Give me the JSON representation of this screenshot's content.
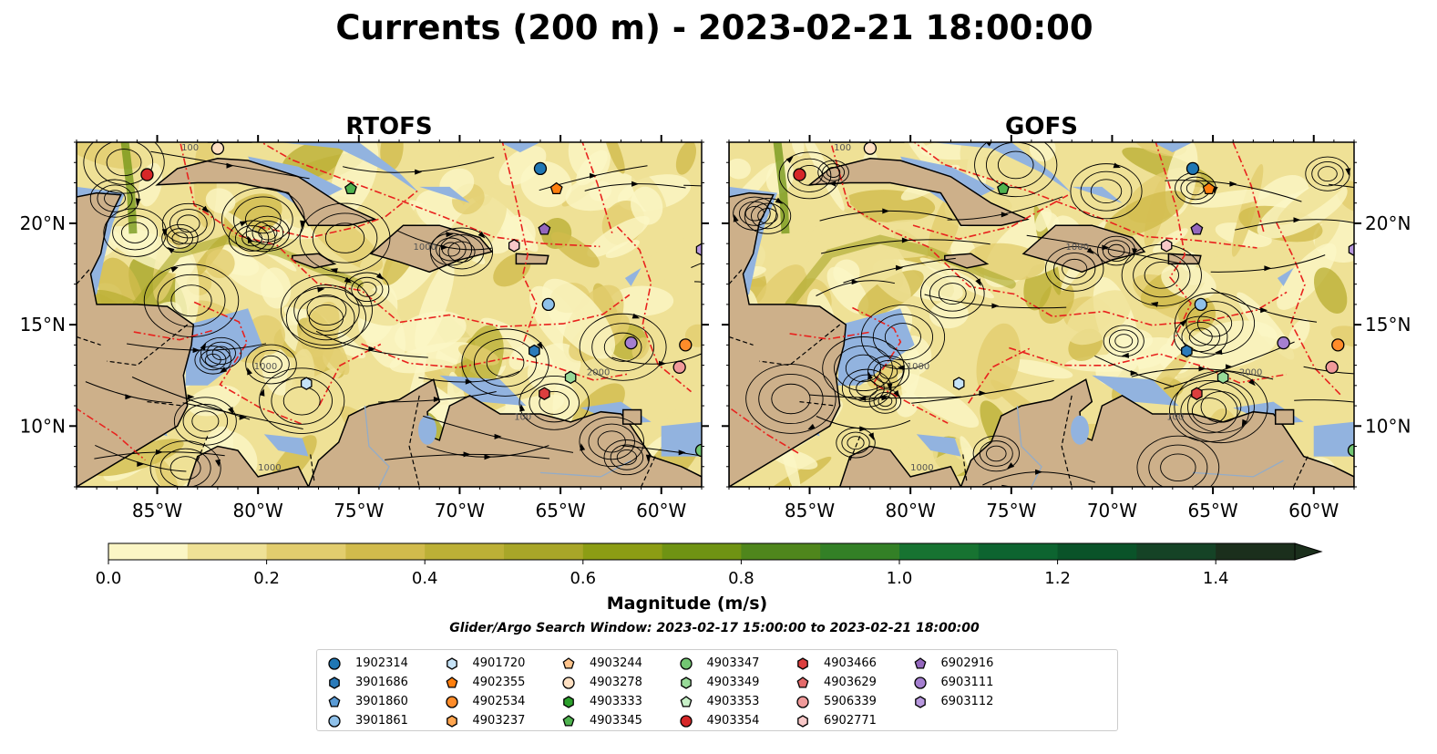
{
  "title": "Currents (200 m) - 2023-02-21 18:00:00",
  "panels": [
    {
      "title": "RTOFS"
    },
    {
      "title": "GOFS"
    }
  ],
  "axes": {
    "lon_ticks": [
      "85°W",
      "80°W",
      "75°W",
      "70°W",
      "65°W",
      "60°W"
    ],
    "lat_ticks": [
      "20°N",
      "15°N",
      "10°N"
    ],
    "lon_range": [
      -89,
      -58
    ],
    "lat_range": [
      7,
      24
    ]
  },
  "colorbar": {
    "label": "Magnitude (m/s)",
    "ticks": [
      "0.0",
      "0.2",
      "0.4",
      "0.6",
      "0.8",
      "1.0",
      "1.2",
      "1.4"
    ],
    "range": [
      0,
      1.5
    ],
    "colors": [
      "#fbf6c5",
      "#efe196",
      "#e2cd6e",
      "#d1bb4c",
      "#bcb036",
      "#a8a628",
      "#8c9d14",
      "#6f9313",
      "#4f861c",
      "#338026",
      "#177331",
      "#0d6430",
      "#0a5329",
      "#154326",
      "#1b2f1c"
    ],
    "extend": "max"
  },
  "search_window": "Glider/Argo Search Window: 2023-02-17 15:00:00 to 2023-02-21 18:00:00",
  "legend": [
    {
      "id": "1902314",
      "color": "#1f77b4",
      "marker": "circle"
    },
    {
      "id": "3901686",
      "color": "#2b7bba",
      "marker": "hexagon"
    },
    {
      "id": "3901860",
      "color": "#5a9bd5",
      "marker": "pentagon"
    },
    {
      "id": "3901861",
      "color": "#8fc1ea",
      "marker": "circle"
    },
    {
      "id": "4901720",
      "color": "#c6e3f7",
      "marker": "hexagon"
    },
    {
      "id": "4902355",
      "color": "#ff7f0e",
      "marker": "pentagon"
    },
    {
      "id": "4902534",
      "color": "#ff8c2a",
      "marker": "circle"
    },
    {
      "id": "4903237",
      "color": "#ffa54f",
      "marker": "hexagon"
    },
    {
      "id": "4903244",
      "color": "#ffc48c",
      "marker": "pentagon"
    },
    {
      "id": "4903278",
      "color": "#ffe0c2",
      "marker": "circle"
    },
    {
      "id": "4903333",
      "color": "#2ca02c",
      "marker": "hexagon"
    },
    {
      "id": "4903345",
      "color": "#4fb34f",
      "marker": "pentagon"
    },
    {
      "id": "4903347",
      "color": "#72c672",
      "marker": "circle"
    },
    {
      "id": "4903349",
      "color": "#98da98",
      "marker": "hexagon"
    },
    {
      "id": "4903353",
      "color": "#c8f0c8",
      "marker": "pentagon"
    },
    {
      "id": "4903354",
      "color": "#d62728",
      "marker": "circle"
    },
    {
      "id": "4903466",
      "color": "#dc3e3e",
      "marker": "hexagon"
    },
    {
      "id": "4903629",
      "color": "#e56b6b",
      "marker": "pentagon"
    },
    {
      "id": "5906339",
      "color": "#f09a9a",
      "marker": "circle"
    },
    {
      "id": "6902771",
      "color": "#f8c8c8",
      "marker": "hexagon"
    },
    {
      "id": "6902916",
      "color": "#9467bd",
      "marker": "pentagon"
    },
    {
      "id": "6903111",
      "color": "#a57fd0",
      "marker": "circle"
    },
    {
      "id": "6903112",
      "color": "#b898de",
      "marker": "hexagon"
    }
  ],
  "floats": [
    {
      "id": "4903354",
      "lon": -85.5,
      "lat": 22.4,
      "color": "#d62728",
      "marker": "circle"
    },
    {
      "id": "4903278",
      "lon": -82.0,
      "lat": 23.7,
      "color": "#ffe0c2",
      "marker": "circle"
    },
    {
      "id": "4903345",
      "lon": -75.4,
      "lat": 21.7,
      "color": "#4fb34f",
      "marker": "pentagon"
    },
    {
      "id": "1902314",
      "lon": -66.0,
      "lat": 22.7,
      "color": "#1f77b4",
      "marker": "circle"
    },
    {
      "id": "4902355",
      "lon": -65.2,
      "lat": 21.7,
      "color": "#ff7f0e",
      "marker": "pentagon"
    },
    {
      "id": "6902916",
      "lon": -65.8,
      "lat": 19.7,
      "color": "#9467bd",
      "marker": "pentagon"
    },
    {
      "id": "6902771",
      "lon": -67.3,
      "lat": 18.9,
      "color": "#f8c8c8",
      "marker": "hexagon"
    },
    {
      "id": "6903112",
      "lon": -58.0,
      "lat": 18.7,
      "color": "#b898de",
      "marker": "hexagon"
    },
    {
      "id": "3901861",
      "lon": -65.6,
      "lat": 16.0,
      "color": "#8fc1ea",
      "marker": "circle"
    },
    {
      "id": "6903111",
      "lon": -61.5,
      "lat": 14.1,
      "color": "#a57fd0",
      "marker": "circle"
    },
    {
      "id": "4902534",
      "lon": -58.8,
      "lat": 14.0,
      "color": "#ff8c2a",
      "marker": "circle"
    },
    {
      "id": "3901686",
      "lon": -66.3,
      "lat": 13.7,
      "color": "#2b7bba",
      "marker": "hexagon"
    },
    {
      "id": "5906339",
      "lon": -59.1,
      "lat": 12.9,
      "color": "#f09a9a",
      "marker": "circle"
    },
    {
      "id": "4903349",
      "lon": -64.5,
      "lat": 12.4,
      "color": "#98da98",
      "marker": "hexagon"
    },
    {
      "id": "4901720",
      "lon": -77.6,
      "lat": 12.1,
      "color": "#c6e3f7",
      "marker": "hexagon"
    },
    {
      "id": "4903466",
      "lon": -65.8,
      "lat": 11.6,
      "color": "#dc3e3e",
      "marker": "hexagon"
    },
    {
      "id": "4903347",
      "lon": -58.0,
      "lat": 8.8,
      "color": "#72c672",
      "marker": "circle"
    }
  ],
  "contour_labels": [
    "1000",
    "100",
    "2000"
  ]
}
